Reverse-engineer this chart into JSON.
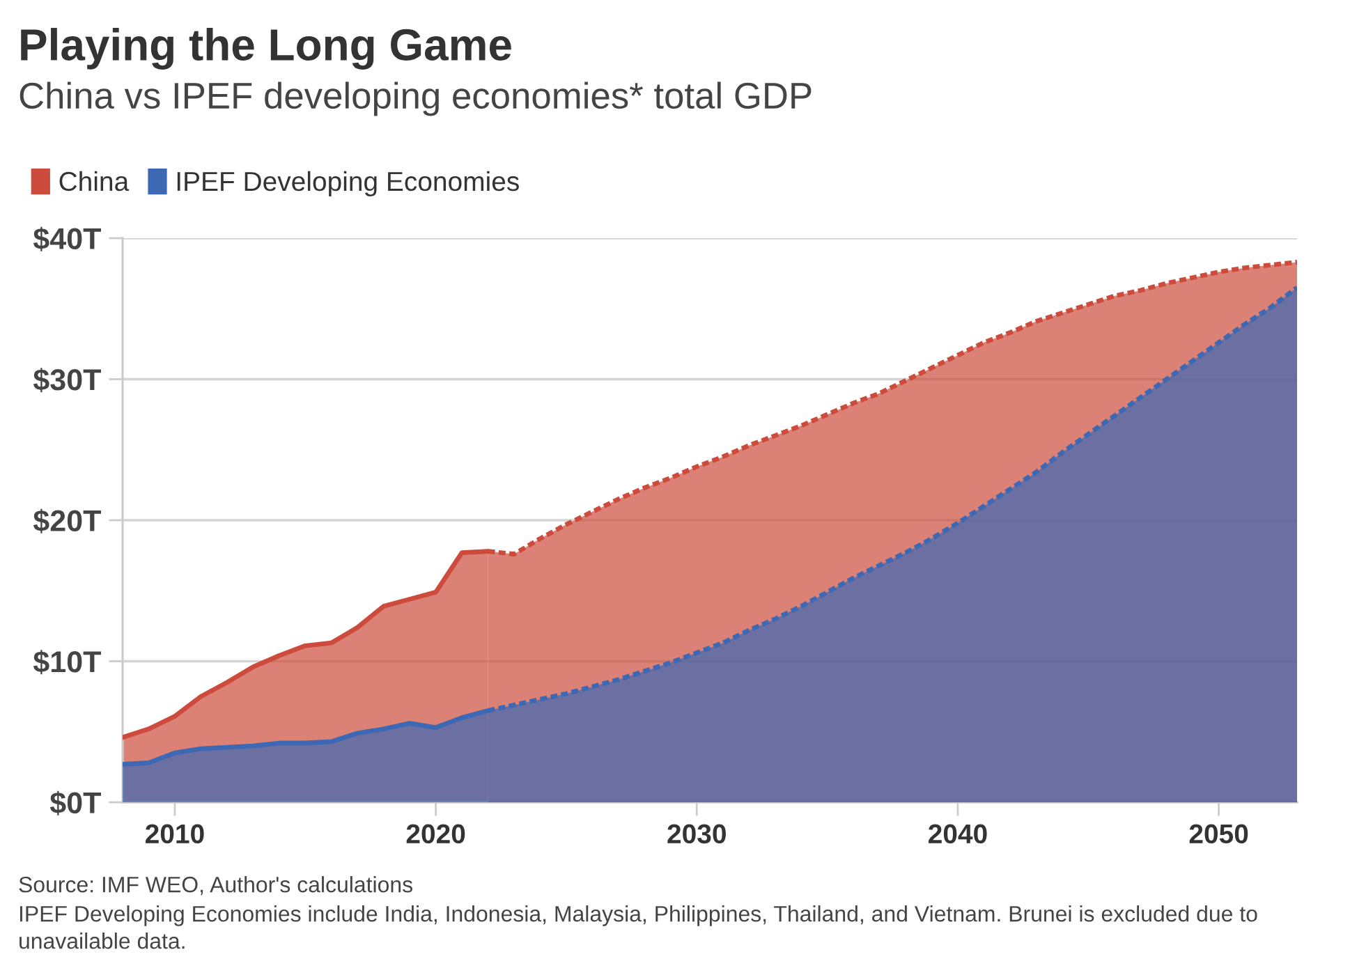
{
  "chart_data": {
    "type": "area",
    "title": "Playing the Long Game",
    "subtitle": "China vs IPEF developing economies* total GDP",
    "annotations": [
      "Source: IMF WEO, Author's calculations",
      "IPEF Developing Economies include India, Indonesia, Malaysia, Philippines, Thailand, and Vietnam. Brunei is excluded due to unavailable data."
    ],
    "xlim": [
      2008,
      2053
    ],
    "xticks": [
      2010,
      2020,
      2030,
      2040,
      2050
    ],
    "ylim": [
      0,
      40
    ],
    "yticks": [
      {
        "value": 0,
        "label": "$0T"
      },
      {
        "value": 10,
        "label": "$10T"
      },
      {
        "value": 20,
        "label": "$20T"
      },
      {
        "value": 30,
        "label": "$30T"
      },
      {
        "value": 40,
        "label": "$40T"
      }
    ],
    "grid": "y",
    "legend": "top left",
    "series": [
      {
        "name": "China",
        "color": "#cc4b3c",
        "line_style": "solid",
        "x": [
          2008,
          2009,
          2010,
          2011,
          2012,
          2013,
          2014,
          2015,
          2016,
          2017,
          2018,
          2019,
          2020,
          2021,
          2022
        ],
        "values": [
          4.6,
          5.2,
          6.1,
          7.5,
          8.5,
          9.6,
          10.4,
          11.1,
          11.3,
          12.4,
          13.9,
          14.4,
          14.9,
          17.7,
          17.8
        ]
      },
      {
        "color": "#cc4b3c",
        "line_style": "dashed",
        "x": [
          2022,
          2023,
          2024,
          2025,
          2026,
          2027,
          2028,
          2029,
          2030,
          2031,
          2032,
          2033,
          2034,
          2035,
          2036,
          2037,
          2038,
          2039,
          2040,
          2041,
          2042,
          2043,
          2044,
          2045,
          2046,
          2047,
          2048,
          2049,
          2050,
          2051,
          2052,
          2053
        ],
        "values": [
          17.8,
          17.6,
          18.7,
          19.7,
          20.6,
          21.5,
          22.3,
          23.0,
          23.8,
          24.5,
          25.3,
          26.0,
          26.7,
          27.5,
          28.3,
          29.0,
          29.9,
          30.8,
          31.7,
          32.6,
          33.3,
          34.1,
          34.7,
          35.3,
          35.9,
          36.3,
          36.8,
          37.2,
          37.6,
          37.9,
          38.1,
          38.3
        ]
      },
      {
        "name": "IPEF Developing Economies",
        "color": "#3c68b4",
        "line_style": "solid",
        "x": [
          2008,
          2009,
          2010,
          2011,
          2012,
          2013,
          2014,
          2015,
          2016,
          2017,
          2018,
          2019,
          2020,
          2021,
          2022
        ],
        "values": [
          2.7,
          2.8,
          3.5,
          3.8,
          3.9,
          4.0,
          4.2,
          4.2,
          4.3,
          4.9,
          5.2,
          5.6,
          5.3,
          6.0,
          6.5
        ]
      },
      {
        "color": "#3c68b4",
        "line_style": "dashed",
        "x": [
          2022,
          2023,
          2024,
          2025,
          2026,
          2027,
          2028,
          2029,
          2030,
          2031,
          2032,
          2033,
          2034,
          2035,
          2036,
          2037,
          2038,
          2039,
          2040,
          2041,
          2042,
          2043,
          2044,
          2045,
          2046,
          2047,
          2048,
          2049,
          2050,
          2051,
          2052,
          2053
        ],
        "values": [
          6.5,
          6.9,
          7.3,
          7.7,
          8.2,
          8.7,
          9.3,
          9.9,
          10.6,
          11.3,
          12.2,
          13.0,
          13.9,
          14.9,
          15.9,
          16.8,
          17.7,
          18.7,
          19.8,
          21.0,
          22.2,
          23.4,
          24.8,
          26.1,
          27.4,
          28.7,
          30.0,
          31.3,
          32.6,
          33.9,
          35.1,
          36.5
        ]
      }
    ]
  }
}
